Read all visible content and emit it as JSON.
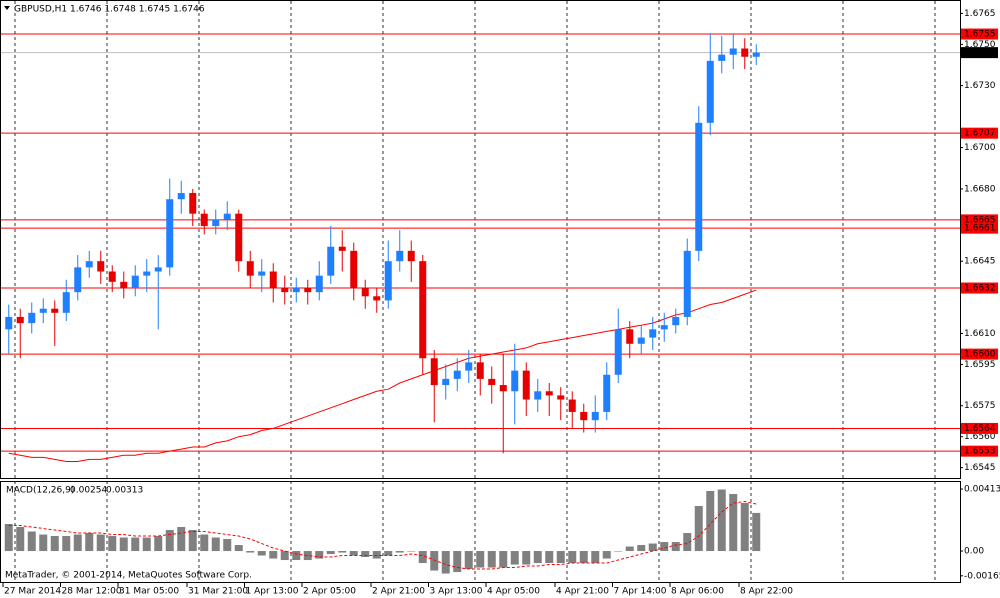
{
  "chart_data": [
    {
      "type": "candlestick",
      "title": "GBPUSD,H1 1.6746 1.6748 1.6745 1.6746",
      "categories": [
        "27 Mar 2014",
        null,
        null,
        null,
        null,
        "28 Mar 12:00",
        null,
        null,
        null,
        null,
        "31 Mar 05:00",
        null,
        null,
        null,
        null,
        null,
        "31 Mar 21:00",
        null,
        null,
        null,
        null,
        "1 Apr 13:00",
        null,
        null,
        null,
        null,
        "2 Apr 05:00",
        null,
        null,
        null,
        null,
        null,
        "2 Apr 21:00",
        null,
        null,
        null,
        null,
        "3 Apr 13:00",
        null,
        null,
        null,
        null,
        "4 Apr 05:00",
        null,
        null,
        null,
        null,
        null,
        "4 Apr 21:00",
        null,
        null,
        null,
        null,
        "7 Apr 14:00",
        null,
        null,
        null,
        null,
        "8 Apr 06:00",
        null,
        null,
        null,
        null,
        null,
        "8 Apr 22:00",
        null
      ],
      "open": [
        1.6612,
        1.6618,
        1.6615,
        1.662,
        1.6622,
        1.662,
        1.663,
        1.6642,
        1.6645,
        1.664,
        1.6635,
        1.6632,
        1.6638,
        1.664,
        1.6642,
        1.6675,
        1.6678,
        1.6668,
        1.6662,
        1.6665,
        1.6668,
        1.6645,
        1.6638,
        1.664,
        1.6632,
        1.663,
        1.6632,
        1.663,
        1.6638,
        1.6652,
        1.665,
        1.6632,
        1.6628,
        1.6626,
        1.6645,
        1.665,
        1.6645,
        1.6598,
        1.6585,
        1.6588,
        1.6592,
        1.6596,
        1.6588,
        1.6585,
        1.6582,
        1.6592,
        1.6578,
        1.6582,
        1.658,
        1.6578,
        1.6572,
        1.6568,
        1.6572,
        1.659,
        1.6612,
        1.6605,
        1.6608,
        1.6612,
        1.6614,
        1.6618,
        1.665,
        1.6712,
        1.6742,
        1.6745,
        1.6748,
        1.6744
      ],
      "high": [
        1.6624,
        1.6622,
        1.6625,
        1.6627,
        1.6626,
        1.6636,
        1.6648,
        1.665,
        1.665,
        1.6643,
        1.664,
        1.6643,
        1.6646,
        1.6648,
        1.6685,
        1.6684,
        1.668,
        1.667,
        1.667,
        1.6674,
        1.667,
        1.665,
        1.6646,
        1.6644,
        1.6638,
        1.6637,
        1.6636,
        1.6645,
        1.6662,
        1.666,
        1.6654,
        1.6636,
        1.6632,
        1.6655,
        1.666,
        1.6655,
        1.6648,
        1.6602,
        1.6595,
        1.6598,
        1.6602,
        1.66,
        1.6594,
        1.66,
        1.6605,
        1.6596,
        1.6588,
        1.6586,
        1.6584,
        1.6582,
        1.6576,
        1.658,
        1.6596,
        1.6622,
        1.6616,
        1.6614,
        1.6618,
        1.662,
        1.6622,
        1.6656,
        1.672,
        1.6755,
        1.6754,
        1.6755,
        1.6753,
        1.675
      ],
      "low": [
        1.66,
        1.6598,
        1.661,
        1.6615,
        1.6604,
        1.6616,
        1.6626,
        1.6637,
        1.6634,
        1.663,
        1.6627,
        1.6628,
        1.663,
        1.6612,
        1.6638,
        1.6668,
        1.6662,
        1.6658,
        1.6658,
        1.666,
        1.664,
        1.6632,
        1.663,
        1.6625,
        1.6624,
        1.6625,
        1.6624,
        1.6626,
        1.6634,
        1.664,
        1.6626,
        1.6622,
        1.662,
        1.6622,
        1.664,
        1.6635,
        1.659,
        1.6567,
        1.6578,
        1.6582,
        1.6586,
        1.658,
        1.6576,
        1.6552,
        1.6566,
        1.657,
        1.6572,
        1.657,
        1.6568,
        1.6564,
        1.6562,
        1.6562,
        1.6568,
        1.6586,
        1.6598,
        1.66,
        1.6602,
        1.6606,
        1.661,
        1.6614,
        1.6645,
        1.6706,
        1.6736,
        1.6738,
        1.6738,
        1.674
      ],
      "close": [
        1.6618,
        1.6615,
        1.662,
        1.6622,
        1.662,
        1.663,
        1.6642,
        1.6645,
        1.664,
        1.6635,
        1.6632,
        1.6638,
        1.664,
        1.6642,
        1.6675,
        1.6678,
        1.6668,
        1.6662,
        1.6665,
        1.6668,
        1.6645,
        1.6638,
        1.664,
        1.6632,
        1.663,
        1.6632,
        1.663,
        1.6638,
        1.6652,
        1.665,
        1.6632,
        1.6628,
        1.6626,
        1.6645,
        1.665,
        1.6645,
        1.6598,
        1.6585,
        1.6588,
        1.6592,
        1.6596,
        1.6588,
        1.6585,
        1.6582,
        1.6592,
        1.6578,
        1.6582,
        1.658,
        1.6578,
        1.6572,
        1.6568,
        1.6572,
        1.659,
        1.6612,
        1.6605,
        1.6608,
        1.6612,
        1.6614,
        1.6618,
        1.665,
        1.6712,
        1.6742,
        1.6745,
        1.6748,
        1.6744,
        1.6746
      ],
      "up_color": "#1e7fff",
      "down_color": "#e60000",
      "ma": [
        1.6552,
        1.6551,
        1.655,
        1.655,
        1.6549,
        1.6548,
        1.6548,
        1.6549,
        1.6549,
        1.655,
        1.6551,
        1.6551,
        1.6552,
        1.6552,
        1.6553,
        1.6554,
        1.6555,
        1.6555,
        1.6557,
        1.6558,
        1.656,
        1.6561,
        1.6563,
        1.6564,
        1.6566,
        1.6568,
        1.657,
        1.6572,
        1.6574,
        1.6576,
        1.6578,
        1.658,
        1.6582,
        1.6583,
        1.6586,
        1.6588,
        1.659,
        1.6592,
        1.6594,
        1.6596,
        1.6598,
        1.6599,
        1.66,
        1.6601,
        1.6602,
        1.6603,
        1.6605,
        1.6606,
        1.6607,
        1.6608,
        1.6609,
        1.661,
        1.6611,
        1.6612,
        1.6613,
        1.6614,
        1.6615,
        1.6617,
        1.6619,
        1.662,
        1.6622,
        1.6624,
        1.6625,
        1.6627,
        1.6629,
        1.6631
      ],
      "ma_color": "#ff0000",
      "levels": [
        1.6755,
        1.6707,
        1.6665,
        1.6661,
        1.6632,
        {
          "value": 1.66,
          "label": "1.6600"
        },
        1.6564,
        1.6553
      ],
      "level_color": "#ff0000",
      "last": 1.6746,
      "ylim": [
        1.654,
        1.6771
      ],
      "yticks": [
        1.6765,
        {
          "value": 1.675,
          "label": "1.6750"
        },
        {
          "value": 1.673,
          "label": "1.6730"
        },
        {
          "value": 1.67,
          "label": "1.6700"
        },
        {
          "value": 1.668,
          "label": "1.6680"
        },
        1.6645,
        {
          "value": 1.661,
          "label": "1.6610"
        },
        1.6595,
        1.6575,
        {
          "value": 1.656,
          "label": "1.6560"
        },
        1.6545
      ],
      "grid": true
    },
    {
      "type": "macd",
      "title": "MACD(12,26,9)",
      "histogram": [
        0.0018,
        0.0016,
        0.0013,
        0.0011,
        0.001,
        0.001,
        0.0011,
        0.0012,
        0.0011,
        0.001,
        0.0009,
        0.0009,
        0.0009,
        0.001,
        0.0014,
        0.0016,
        0.0014,
        0.0011,
        0.0009,
        0.0008,
        0.0004,
        -0.0001,
        -0.0003,
        -0.0005,
        -0.0006,
        -0.0006,
        -0.0006,
        -0.0005,
        -0.0002,
        -0.0001,
        -0.0003,
        -0.0004,
        -0.0005,
        -0.0003,
        -0.0001,
        0.0,
        -0.0008,
        -0.0013,
        -0.0015,
        -0.0014,
        -0.0012,
        -0.0011,
        -0.0011,
        -0.0011,
        -0.0009,
        -0.0009,
        -0.0008,
        -0.0008,
        -0.0008,
        -0.0008,
        -0.0008,
        -0.0008,
        -0.0005,
        0.0,
        0.0003,
        0.0004,
        0.0005,
        0.0006,
        0.0006,
        0.0012,
        0.003,
        0.004,
        0.0041,
        0.0038,
        0.0032,
        0.00254
      ],
      "signal": [
        0.0017,
        0.0017,
        0.0016,
        0.0015,
        0.0014,
        0.0013,
        0.0012,
        0.0012,
        0.0012,
        0.0011,
        0.0011,
        0.001,
        0.001,
        0.001,
        0.0011,
        0.0012,
        0.0013,
        0.0013,
        0.0012,
        0.0011,
        0.001,
        0.0008,
        0.0005,
        0.0002,
        0.0,
        -0.0002,
        -0.0003,
        -0.0004,
        -0.0004,
        -0.0003,
        -0.0003,
        -0.0003,
        -0.0003,
        -0.0003,
        -0.0003,
        -0.0002,
        -0.0003,
        -0.0006,
        -0.0009,
        -0.0011,
        -0.0012,
        -0.0012,
        -0.0012,
        -0.0011,
        -0.0011,
        -0.001,
        -0.001,
        -0.0009,
        -0.0009,
        -0.0008,
        -0.0008,
        -0.0008,
        -0.0008,
        -0.0006,
        -0.0004,
        -0.0002,
        0.0,
        0.0002,
        0.0004,
        0.0005,
        0.001,
        0.0018,
        0.0026,
        0.0032,
        0.0033,
        0.00313
      ],
      "hist_color": "#808080",
      "signal_color": "#ff0000",
      "ylim": [
        -0.00213,
        0.0046
      ],
      "yticks": [
        0.00413,
        {
          "value": 0,
          "label": "0.00"
        },
        -0.00165
      ]
    }
  ],
  "footer": "MetaTrader, © 2001-2014, MetaQuotes Software Corp."
}
